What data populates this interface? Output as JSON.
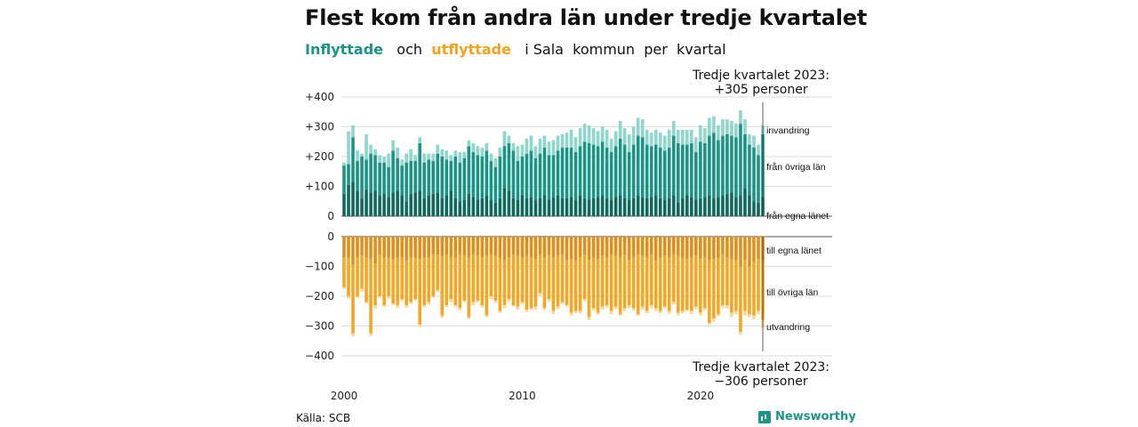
{
  "title": "Flest kom från andra län under tredje kvartalet",
  "subtitle": {
    "in": "Inflyttade",
    "och": "och",
    "out": "utflyttade",
    "rest": "i Sala  kommun  per  kvartal"
  },
  "note_top": {
    "line1": "Tredje kvartalet 2023:",
    "line2": "+305 personer"
  },
  "note_bottom": {
    "line1": "Tredje kvartalet 2023:",
    "line2": "−306 personer"
  },
  "source": "Källa: SCB",
  "brand": "Newsworthy",
  "colors": {
    "in_egna": "#0f6a5d",
    "in_ovriga": "#1a9585",
    "in_invandring": "#8fd6cb",
    "out_egna": "#e0901a",
    "out_ovriga": "#f5a623",
    "out_utvandring": "#fbd79a"
  },
  "chart_data": {
    "type": "bar",
    "stacked": true,
    "x_start": "2000 Q1",
    "x_end": "2023 Q3",
    "x_ticks": [
      "2000",
      "2010",
      "2020"
    ],
    "y_ticks_in": [
      "+400",
      "+300",
      "+200",
      "+100",
      "0"
    ],
    "y_ticks_out": [
      "0",
      "−100",
      "−200",
      "−300",
      "−400"
    ],
    "ylim_in": [
      0,
      400
    ],
    "ylim_out": [
      -400,
      0
    ],
    "series_labels": {
      "invandring": "invandring",
      "fran_ovriga": "från övriga län",
      "fran_egna": "från egna länet",
      "till_egna": "till egna länet",
      "till_ovriga": "till övriga län",
      "utvandring": "utvandring"
    },
    "in_egna": [
      75,
      105,
      115,
      85,
      60,
      90,
      80,
      85,
      70,
      75,
      65,
      80,
      85,
      70,
      50,
      75,
      80,
      85,
      60,
      70,
      75,
      80,
      60,
      70,
      85,
      60,
      50,
      55,
      75,
      65,
      55,
      60,
      70,
      55,
      45,
      60,
      95,
      85,
      60,
      55,
      70,
      60,
      65,
      55,
      60,
      70,
      55,
      65,
      70,
      60,
      60,
      65,
      55,
      70,
      60,
      55,
      60,
      65,
      70,
      60,
      55,
      65,
      70,
      60,
      55,
      60,
      70,
      65,
      60,
      65,
      70,
      60,
      55,
      60,
      70,
      45,
      60,
      70,
      65,
      55,
      60,
      65,
      70,
      60,
      65,
      70,
      75,
      80,
      65,
      70,
      95,
      70,
      50,
      45,
      65
    ],
    "in_ovriga": [
      95,
      70,
      150,
      100,
      140,
      100,
      130,
      120,
      110,
      105,
      100,
      140,
      110,
      100,
      130,
      110,
      105,
      160,
      120,
      120,
      110,
      130,
      140,
      120,
      100,
      140,
      130,
      140,
      160,
      150,
      150,
      140,
      150,
      130,
      120,
      140,
      140,
      160,
      160,
      130,
      130,
      150,
      155,
      140,
      150,
      160,
      150,
      140,
      150,
      170,
      170,
      165,
      160,
      165,
      190,
      190,
      180,
      170,
      180,
      170,
      160,
      170,
      190,
      180,
      160,
      180,
      200,
      200,
      180,
      170,
      170,
      170,
      165,
      170,
      200,
      200,
      180,
      170,
      180,
      160,
      190,
      180,
      200,
      220,
      190,
      200,
      200,
      190,
      200,
      240,
      180,
      170,
      180,
      160,
      210
    ],
    "in_invandring": [
      10,
      110,
      40,
      35,
      10,
      85,
      30,
      20,
      25,
      20,
      45,
      35,
      35,
      20,
      30,
      40,
      20,
      20,
      30,
      20,
      25,
      30,
      25,
      30,
      20,
      20,
      35,
      20,
      20,
      30,
      30,
      30,
      25,
      25,
      30,
      30,
      50,
      25,
      25,
      50,
      40,
      50,
      50,
      40,
      50,
      40,
      45,
      50,
      50,
      45,
      50,
      60,
      50,
      60,
      60,
      60,
      55,
      50,
      50,
      60,
      45,
      50,
      60,
      55,
      60,
      60,
      60,
      60,
      50,
      45,
      50,
      50,
      50,
      60,
      50,
      45,
      50,
      50,
      45,
      50,
      55,
      50,
      60,
      55,
      50,
      55,
      50,
      50,
      45,
      45,
      50,
      35,
      40,
      35,
      30
    ],
    "out_egna": [
      70,
      70,
      95,
      70,
      65,
      70,
      75,
      90,
      60,
      70,
      70,
      75,
      70,
      70,
      80,
      70,
      70,
      75,
      70,
      70,
      60,
      60,
      65,
      60,
      70,
      70,
      60,
      65,
      70,
      60,
      65,
      70,
      65,
      60,
      65,
      70,
      80,
      70,
      60,
      65,
      70,
      65,
      70,
      75,
      60,
      70,
      60,
      70,
      65,
      60,
      80,
      75,
      80,
      70,
      60,
      80,
      70,
      75,
      65,
      70,
      60,
      65,
      70,
      60,
      80,
      70,
      60,
      65,
      70,
      60,
      80,
      70,
      65,
      70,
      60,
      65,
      70,
      75,
      70,
      65,
      75,
      70,
      80,
      75,
      70,
      60,
      70,
      75,
      80,
      100,
      80,
      100,
      85,
      75,
      80
    ],
    "out_ovriga": [
      100,
      130,
      230,
      130,
      110,
      150,
      250,
      140,
      140,
      160,
      130,
      150,
      160,
      140,
      150,
      150,
      140,
      220,
      160,
      150,
      140,
      120,
      200,
      170,
      140,
      160,
      180,
      150,
      200,
      160,
      150,
      160,
      200,
      140,
      150,
      180,
      150,
      140,
      170,
      170,
      150,
      180,
      170,
      160,
      130,
      170,
      150,
      180,
      170,
      160,
      150,
      180,
      170,
      180,
      150,
      190,
      170,
      180,
      170,
      160,
      190,
      170,
      190,
      180,
      150,
      170,
      200,
      170,
      180,
      170,
      160,
      180,
      170,
      180,
      160,
      190,
      180,
      170,
      180,
      170,
      180,
      170,
      210,
      200,
      190,
      170,
      160,
      180,
      170,
      220,
      170,
      160,
      180,
      175,
      200
    ],
    "out_utvandring": [
      5,
      8,
      10,
      6,
      10,
      5,
      8,
      12,
      5,
      6,
      8,
      5,
      10,
      6,
      8,
      6,
      5,
      8,
      6,
      8,
      5,
      6,
      8,
      6,
      10,
      6,
      8,
      5,
      6,
      10,
      6,
      8,
      5,
      10,
      8,
      6,
      10,
      8,
      5,
      10,
      6,
      8,
      6,
      10,
      8,
      6,
      8,
      10,
      8,
      6,
      5,
      10,
      6,
      8,
      8,
      10,
      8,
      6,
      10,
      8,
      10,
      8,
      6,
      10,
      10,
      8,
      6,
      10,
      8,
      10,
      10,
      8,
      6,
      10,
      8,
      10,
      8,
      6,
      10,
      8,
      10,
      8,
      6,
      10,
      8,
      10,
      10,
      15,
      10,
      10,
      15,
      10,
      12,
      10,
      26
    ]
  }
}
